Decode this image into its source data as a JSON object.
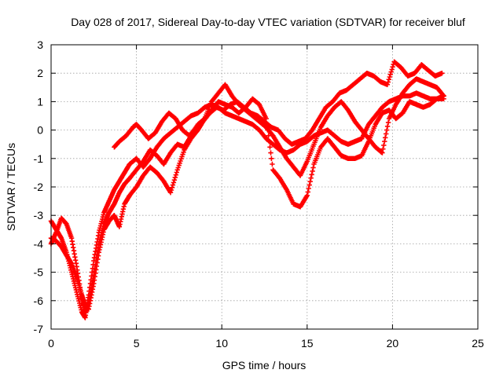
{
  "chart_data": {
    "type": "scatter",
    "title": "Day 028 of 2017, Sidereal Day-to-day VTEC variation (SDTVAR) for receiver bluf",
    "xlabel": "GPS time / hours",
    "ylabel": "SDTVAR / TECUs",
    "xlim": [
      0,
      25
    ],
    "ylim": [
      -7,
      3
    ],
    "xticks": [
      "0",
      "5",
      "10",
      "15",
      "20",
      "25"
    ],
    "yticks": [
      "-7",
      "-6",
      "-5",
      "-4",
      "-3",
      "-2",
      "-1",
      "0",
      "1",
      "2",
      "3"
    ],
    "grid": true,
    "marker": "plus",
    "color": "#ff0000",
    "series": [
      {
        "x": [
          0.0,
          0.3,
          0.6,
          0.9,
          1.2,
          1.5,
          1.8,
          2.0,
          2.2,
          2.5,
          2.8,
          3.1,
          3.4,
          3.7,
          4.0,
          4.3,
          4.6,
          5.0,
          5.4,
          5.8,
          6.2,
          6.6,
          7.0,
          7.4,
          7.8,
          8.2,
          8.6,
          9.0,
          9.4,
          9.8,
          10.2,
          10.6,
          11.0,
          11.4,
          11.8,
          12.2,
          12.6,
          13.0,
          13.4,
          13.8,
          14.2,
          14.6,
          15.0,
          15.4,
          15.8,
          16.2,
          16.6,
          17.0,
          17.4,
          17.8,
          18.2,
          18.6,
          19.0,
          19.4,
          19.8,
          20.2,
          20.6,
          21.0,
          21.4,
          21.8,
          22.2,
          22.6,
          23.0
        ],
        "y": [
          -3.2,
          -3.5,
          -3.8,
          -4.3,
          -5.0,
          -5.7,
          -6.4,
          -6.6,
          -5.8,
          -4.6,
          -3.6,
          -2.9,
          -2.5,
          -2.1,
          -1.8,
          -1.5,
          -1.2,
          -1.0,
          -1.3,
          -1.0,
          -0.6,
          -0.3,
          -0.1,
          0.1,
          0.3,
          0.5,
          0.6,
          0.8,
          0.9,
          0.8,
          0.6,
          0.5,
          0.4,
          0.3,
          0.2,
          0.0,
          -0.3,
          -0.5,
          -0.7,
          -0.8,
          -0.7,
          -0.5,
          -0.4,
          -0.2,
          -0.1,
          0.0,
          -0.2,
          -0.4,
          -0.5,
          -0.4,
          -0.3,
          0.2,
          0.5,
          0.8,
          1.0,
          1.1,
          1.2,
          1.2,
          1.3,
          1.2,
          1.1,
          1.1,
          1.1
        ]
      },
      {
        "x": [
          0.0,
          0.3,
          0.6,
          0.9,
          1.2,
          1.5,
          1.8,
          2.0,
          2.2,
          2.5,
          2.8,
          3.1,
          3.4,
          3.7,
          4.0,
          4.3,
          4.6,
          5.0,
          5.4,
          5.8,
          6.2,
          6.6,
          7.0,
          7.4,
          7.8,
          8.2,
          8.6,
          9.0,
          9.4,
          9.8,
          10.2,
          10.6,
          11.0,
          11.4,
          11.8,
          12.2,
          12.6,
          13.0,
          13.4,
          13.8,
          14.2,
          14.6,
          15.0,
          15.4,
          15.8,
          16.2,
          16.6,
          17.0,
          17.4,
          17.8,
          18.2,
          18.6,
          19.0,
          19.4,
          19.8,
          20.2,
          20.6,
          21.0,
          21.4,
          21.8,
          22.2,
          22.6,
          23.0
        ],
        "y": [
          -4.0,
          -3.6,
          -3.1,
          -3.3,
          -3.8,
          -4.8,
          -5.9,
          -6.4,
          -6.1,
          -5.1,
          -4.0,
          -3.3,
          -2.9,
          -2.6,
          -2.2,
          -1.9,
          -1.7,
          -1.4,
          -1.1,
          -0.7,
          -0.9,
          -1.2,
          -0.8,
          -0.5,
          -0.6,
          -0.2,
          0.2,
          0.4,
          1.0,
          1.3,
          1.6,
          1.2,
          0.9,
          0.7,
          0.5,
          0.3,
          0.1,
          -0.2,
          -0.6,
          -1.0,
          -1.3,
          -1.6,
          -1.1,
          -0.5,
          0.1,
          0.5,
          0.8,
          1.0,
          0.7,
          0.3,
          0.0,
          -0.3,
          -0.6,
          -0.8,
          0.4,
          0.9,
          1.3,
          1.6,
          1.8,
          1.7,
          1.6,
          1.5,
          1.2
        ]
      },
      {
        "x": [
          0.0,
          0.3,
          0.6,
          0.9,
          1.2,
          1.5,
          1.8,
          2.0,
          2.2,
          2.5,
          2.8,
          3.1,
          3.4,
          3.7,
          4.0,
          4.3,
          4.6,
          5.0,
          5.4,
          5.8,
          6.2,
          6.6,
          7.0,
          7.4,
          7.8,
          8.2,
          8.6,
          9.0,
          9.4,
          9.8,
          10.2,
          10.6,
          11.0,
          11.4,
          11.8,
          12.2,
          12.6,
          13.0,
          13.4,
          13.8,
          14.2,
          14.6,
          15.0,
          15.4,
          15.8,
          16.2,
          16.6,
          17.0,
          17.4,
          17.8,
          18.2,
          18.6,
          19.0,
          19.4,
          19.8,
          20.2,
          20.6,
          21.0,
          21.4,
          21.8,
          22.2,
          22.6,
          23.0
        ],
        "y": [
          -3.8,
          -3.9,
          -4.1,
          -4.4,
          -4.7,
          -5.2,
          -5.8,
          -6.2,
          -6.3,
          -5.4,
          -4.3,
          -3.5,
          -3.2,
          -3.0,
          -3.4,
          -2.6,
          -2.3,
          -2.0,
          -1.6,
          -1.3,
          -1.5,
          -1.8,
          -2.2,
          -1.4,
          -0.7,
          -0.3,
          0.0,
          0.4,
          0.7,
          1.0,
          0.9,
          0.8,
          0.6,
          0.8,
          1.1,
          0.9,
          0.4,
          -1.4,
          -1.7,
          -2.1,
          -2.6,
          -2.7,
          -2.3,
          -1.2,
          -0.6,
          -0.3,
          -0.6,
          -0.9,
          -1.0,
          -1.0,
          -0.9,
          -0.4,
          0.2,
          0.6,
          0.7,
          0.4,
          0.6,
          1.0,
          0.9,
          0.8,
          0.9,
          1.1,
          1.2
        ]
      },
      {
        "x": [
          3.7,
          4.0,
          4.4,
          4.8,
          5.0,
          5.3,
          5.7,
          6.1,
          6.5,
          6.9,
          7.3,
          7.7,
          8.1,
          8.5,
          8.9,
          9.3,
          9.7,
          10.1,
          10.5,
          10.9,
          11.3,
          11.7,
          12.1,
          12.5,
          12.9,
          13.3,
          13.7,
          14.1,
          14.5,
          14.9,
          15.3,
          15.7,
          16.1,
          16.5,
          16.9,
          17.3,
          17.7,
          18.1,
          18.5,
          18.9,
          19.3,
          19.7,
          20.1,
          20.5,
          20.9,
          21.3,
          21.7,
          22.1,
          22.5,
          22.9
        ],
        "y": [
          -0.6,
          -0.4,
          -0.2,
          0.1,
          0.2,
          0.0,
          -0.3,
          -0.1,
          0.3,
          0.6,
          0.4,
          0.0,
          -0.2,
          0.1,
          0.3,
          0.6,
          0.8,
          0.7,
          0.9,
          1.0,
          0.8,
          0.6,
          0.5,
          0.3,
          0.1,
          0.0,
          -0.3,
          -0.5,
          -0.4,
          -0.3,
          0.0,
          0.4,
          0.8,
          1.0,
          1.3,
          1.4,
          1.6,
          1.8,
          2.0,
          1.9,
          1.7,
          1.6,
          2.4,
          2.2,
          1.9,
          2.0,
          2.3,
          2.1,
          1.9,
          2.0
        ]
      }
    ]
  }
}
